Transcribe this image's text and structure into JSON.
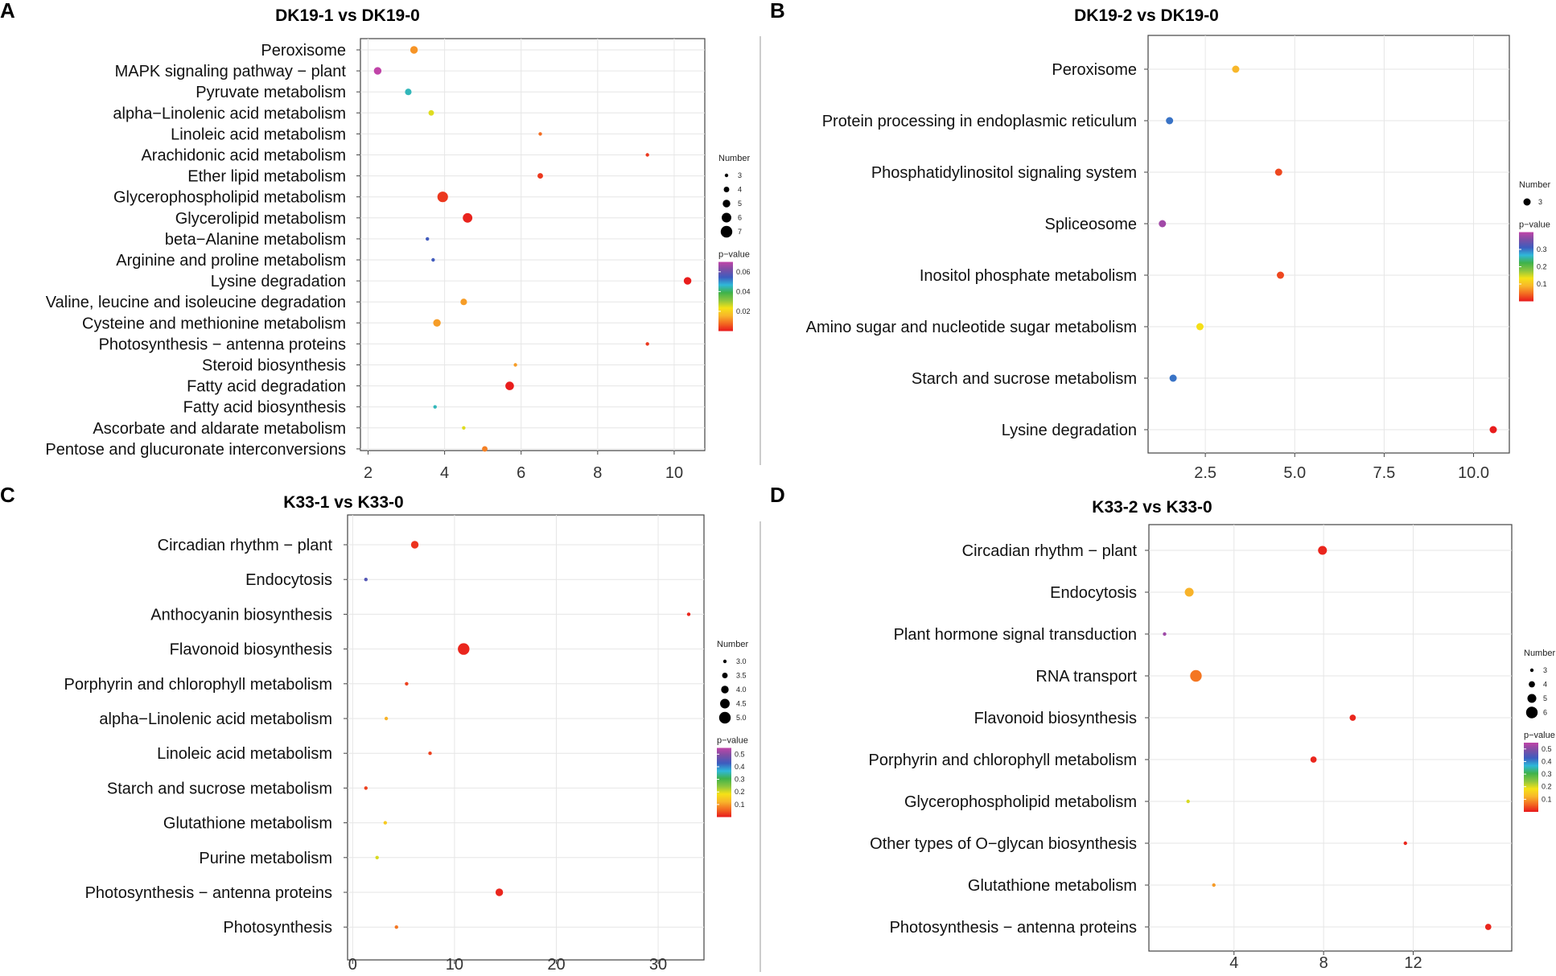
{
  "colors": {
    "pvalue_scale": [
      "#e8181c",
      "#f36b21",
      "#f8b62a",
      "#f5e216",
      "#8cc63f",
      "#3fb24a",
      "#2fb8d9",
      "#3d5cbf",
      "#7b4fa6",
      "#c044a8"
    ]
  },
  "chart_data": [
    {
      "type": "scatter",
      "panel": "A",
      "title": "DK19-1 vs DK19-0",
      "xlabel": "",
      "ylabel": "",
      "xlim": [
        1.8,
        10.8
      ],
      "xticks": [
        2,
        4,
        6,
        8,
        10
      ],
      "xtick_labels": [
        "2",
        "4",
        "6",
        "8",
        "10"
      ],
      "categories": [
        "Peroxisome",
        "MAPK signaling pathway − plant",
        "Pyruvate metabolism",
        "alpha−Linolenic acid metabolism",
        "Linoleic acid metabolism",
        "Arachidonic acid metabolism",
        "Ether lipid metabolism",
        "Glycerophospholipid metabolism",
        "Glycerolipid metabolism",
        "beta−Alanine metabolism",
        "Arginine and proline metabolism",
        "Lysine degradation",
        "Valine, leucine and isoleucine degradation",
        "Cysteine and methionine metabolism",
        "Photosynthesis − antenna proteins",
        "Steroid biosynthesis",
        "Fatty acid degradation",
        "Fatty acid biosynthesis",
        "Ascorbate and aldarate metabolism",
        "Pentose and glucuronate interconversions"
      ],
      "x": [
        3.2,
        2.25,
        3.05,
        3.65,
        6.5,
        9.3,
        6.5,
        3.95,
        4.6,
        3.55,
        3.7,
        10.35,
        4.5,
        3.8,
        9.3,
        5.85,
        5.7,
        3.75,
        4.5,
        5.05
      ],
      "number": [
        5,
        5,
        4.5,
        4,
        3,
        3,
        4,
        6.5,
        6,
        3,
        3,
        5,
        4.5,
        5,
        3,
        3,
        5.5,
        3,
        3,
        4
      ],
      "pvalue": [
        0.012,
        0.07,
        0.045,
        0.025,
        0.008,
        0.003,
        0.003,
        0.003,
        0.001,
        0.055,
        0.055,
        0.0005,
        0.013,
        0.013,
        0.003,
        0.013,
        0.0005,
        0.045,
        0.025,
        0.01
      ],
      "pvalue_max": 0.07,
      "legend_number": {
        "title": "Number",
        "values": [
          3,
          4,
          5,
          6,
          7
        ],
        "labels": [
          "3",
          "4",
          "5",
          "6",
          "7"
        ]
      },
      "legend_pvalue": {
        "title": "p−value",
        "ticks": [
          0.06,
          0.04,
          0.02
        ],
        "labels": [
          "0.06",
          "0.04",
          "0.02"
        ]
      }
    },
    {
      "type": "scatter",
      "panel": "B",
      "title": "DK19-2 vs DK19-0",
      "xlabel": "",
      "ylabel": "",
      "xlim": [
        0.9,
        11.0
      ],
      "xticks": [
        2.5,
        5.0,
        7.5,
        10.0
      ],
      "xtick_labels": [
        "2.5",
        "5.0",
        "7.5",
        "10.0"
      ],
      "categories": [
        "Peroxisome",
        "Protein processing in endoplasmic reticulum",
        "Phosphatidylinositol signaling system",
        "Spliceosome",
        "Inositol phosphate metabolism",
        "Amino sugar and nucleotide sugar metabolism",
        "Starch and sucrose metabolism",
        "Lysine degradation"
      ],
      "x": [
        3.35,
        1.5,
        4.55,
        1.3,
        4.6,
        2.35,
        1.6,
        10.55
      ],
      "number": [
        3,
        3,
        3,
        3,
        3,
        3,
        3,
        3
      ],
      "pvalue": [
        0.09,
        0.3,
        0.025,
        0.38,
        0.025,
        0.13,
        0.3,
        0.002
      ],
      "pvalue_max": 0.4,
      "legend_number": {
        "title": "Number",
        "values": [
          3
        ],
        "labels": [
          "3"
        ]
      },
      "legend_pvalue": {
        "title": "p−value",
        "ticks": [
          0.3,
          0.2,
          0.1
        ],
        "labels": [
          "0.3",
          "0.2",
          "0.1"
        ]
      }
    },
    {
      "type": "scatter",
      "panel": "C",
      "title": "K33-1 vs K33-0",
      "xlabel": "",
      "ylabel": "",
      "xlim": [
        -0.5,
        34.5
      ],
      "xticks": [
        0,
        10,
        20,
        30
      ],
      "xtick_labels": [
        "0",
        "10",
        "20",
        "30"
      ],
      "categories": [
        "Circadian rhythm − plant",
        "Endocytosis",
        "Anthocyanin biosynthesis",
        "Flavonoid biosynthesis",
        "Porphyrin and chlorophyll metabolism",
        "alpha−Linolenic acid metabolism",
        "Linoleic acid metabolism",
        "Starch and sucrose metabolism",
        "Glutathione metabolism",
        "Purine metabolism",
        "Photosynthesis − antenna proteins",
        "Photosynthesis"
      ],
      "x": [
        6.1,
        1.3,
        33.0,
        10.9,
        5.3,
        3.3,
        7.6,
        1.3,
        3.2,
        2.4,
        14.4,
        4.3
      ],
      "number": [
        4.0,
        3.0,
        3.0,
        5.0,
        3.0,
        3.0,
        3.0,
        3.0,
        3.0,
        3.0,
        4.0,
        3.0
      ],
      "pvalue": [
        0.02,
        0.45,
        0.01,
        0.01,
        0.03,
        0.12,
        0.03,
        0.03,
        0.15,
        0.2,
        0.01,
        0.07
      ],
      "pvalue_max": 0.55,
      "legend_number": {
        "title": "Number",
        "values": [
          3.0,
          3.5,
          4.0,
          4.5,
          5.0
        ],
        "labels": [
          "3.0",
          "3.5",
          "4.0",
          "4.5",
          "5.0"
        ]
      },
      "legend_pvalue": {
        "title": "p−value",
        "ticks": [
          0.5,
          0.4,
          0.3,
          0.2,
          0.1
        ],
        "labels": [
          "0.5",
          "0.4",
          "0.3",
          "0.2",
          "0.1"
        ]
      }
    },
    {
      "type": "scatter",
      "panel": "D",
      "title": "K33-2 vs K33-0",
      "xlabel": "",
      "ylabel": "",
      "xlim": [
        0.2,
        16.4
      ],
      "xticks": [
        4,
        8,
        12
      ],
      "xtick_labels": [
        "4",
        "8",
        "12"
      ],
      "categories": [
        "Circadian rhythm − plant",
        "Endocytosis",
        "Plant hormone signal transduction",
        "RNA transport",
        "Flavonoid biosynthesis",
        "Porphyrin and chlorophyll metabolism",
        "Glycerophospholipid metabolism",
        "Other types of O−glycan biosynthesis",
        "Glutathione metabolism",
        "Photosynthesis − antenna proteins"
      ],
      "x": [
        7.95,
        2.0,
        0.9,
        2.3,
        9.3,
        7.55,
        1.95,
        11.65,
        3.1,
        15.35
      ],
      "number": [
        5,
        5,
        3,
        6,
        4,
        4,
        3,
        3,
        3,
        4
      ],
      "pvalue": [
        0.01,
        0.12,
        0.52,
        0.07,
        0.01,
        0.01,
        0.2,
        0.01,
        0.1,
        0.01
      ],
      "pvalue_max": 0.55,
      "legend_number": {
        "title": "Number",
        "values": [
          3,
          4,
          5,
          6
        ],
        "labels": [
          "3",
          "4",
          "5",
          "6"
        ]
      },
      "legend_pvalue": {
        "title": "p−value",
        "ticks": [
          0.5,
          0.4,
          0.3,
          0.2,
          0.1
        ],
        "labels": [
          "0.5",
          "0.4",
          "0.3",
          "0.2",
          "0.1"
        ]
      }
    }
  ]
}
